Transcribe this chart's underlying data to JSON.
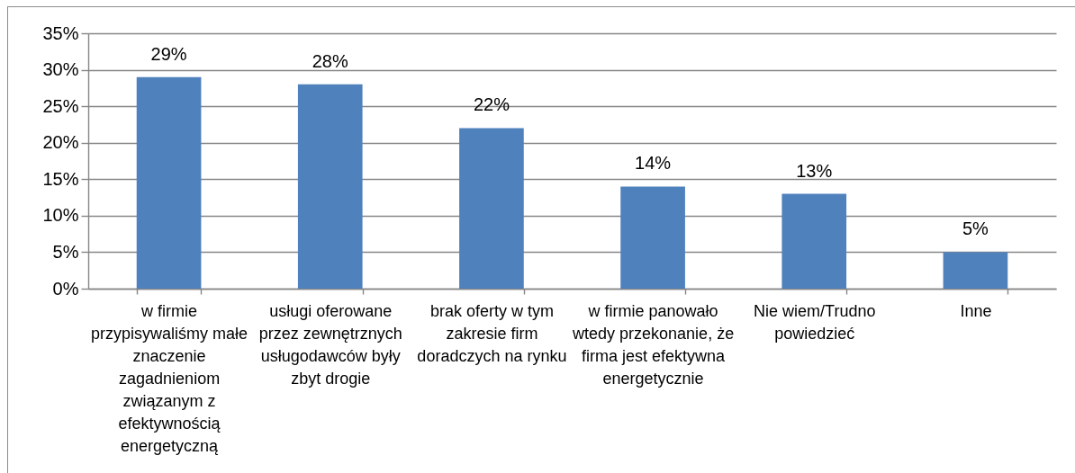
{
  "chart_data": {
    "type": "bar",
    "categories": [
      "w firmie przypisywaliśmy małe znaczenie zagadnieniom związanym z efektywnością energetyczną",
      "usługi oferowane przez zewnętrznych usługodawców były zbyt drogie",
      "brak oferty w tym zakresie firm doradczych na rynku",
      "w firmie panowało wtedy przekonanie, że firma jest efektywna energetycznie",
      "Nie wiem/Trudno powiedzieć",
      "Inne"
    ],
    "values": [
      29,
      28,
      22,
      14,
      13,
      5
    ],
    "value_labels": [
      "29%",
      "28%",
      "22%",
      "14%",
      "13%",
      "5%"
    ],
    "color": "#4f81bd",
    "ylim": [
      0,
      35
    ],
    "yticks": [
      {
        "value": 0,
        "label": "0%"
      },
      {
        "value": 5,
        "label": "5%"
      },
      {
        "value": 10,
        "label": "10%"
      },
      {
        "value": 15,
        "label": "15%"
      },
      {
        "value": 20,
        "label": "20%"
      },
      {
        "value": 25,
        "label": "25%"
      },
      {
        "value": 30,
        "label": "30%"
      },
      {
        "value": 35,
        "label": "35%"
      }
    ],
    "grid": "y"
  }
}
